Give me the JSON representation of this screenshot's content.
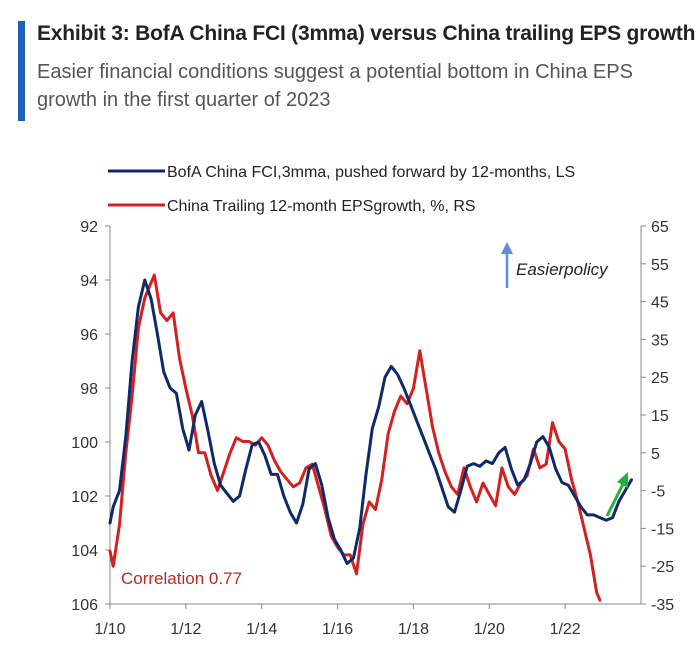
{
  "chart_data": {
    "type": "line",
    "title": "Exhibit 3: BofA China FCI (3mma) versus China trailing EPS growth",
    "subtitle": "Easier financial conditions suggest a potential bottom in China EPS growth in the first quarter of 2023",
    "x_ticks": [
      "1/10",
      "1/12",
      "1/14",
      "1/16",
      "1/18",
      "1/20",
      "1/22"
    ],
    "y_left": {
      "ticks": [
        "92",
        "94",
        "96",
        "98",
        "100",
        "102",
        "104",
        "106"
      ],
      "range": [
        92,
        106
      ],
      "inverted": true
    },
    "y_right": {
      "ticks": [
        "65",
        "55",
        "45",
        "35",
        "25",
        "15",
        "5",
        "-5",
        "-15",
        "-25",
        "-35"
      ],
      "range": [
        -35,
        65
      ]
    },
    "annotation": "Easierpolicy",
    "correlation_label": "Correlation 0.77",
    "grid": false,
    "legend_position": "top",
    "series": [
      {
        "name": "BofA China FCI,3mma, pushed forward by 12-months, LS",
        "axis": "left",
        "color": "#0f2a6b",
        "points": [
          [
            "2010-01",
            103.0
          ],
          [
            "2010-02",
            102.4
          ],
          [
            "2010-04",
            101.8
          ],
          [
            "2010-06",
            99.8
          ],
          [
            "2010-08",
            97.0
          ],
          [
            "2010-10",
            95.0
          ],
          [
            "2010-12",
            94.0
          ],
          [
            "2011-02",
            94.7
          ],
          [
            "2011-04",
            96.0
          ],
          [
            "2011-06",
            97.4
          ],
          [
            "2011-08",
            98.0
          ],
          [
            "2011-10",
            98.2
          ],
          [
            "2011-12",
            99.5
          ],
          [
            "2012-02",
            100.3
          ],
          [
            "2012-04",
            99.0
          ],
          [
            "2012-06",
            98.5
          ],
          [
            "2012-08",
            99.6
          ],
          [
            "2012-10",
            100.8
          ],
          [
            "2012-12",
            101.6
          ],
          [
            "2013-02",
            101.9
          ],
          [
            "2013-04",
            102.2
          ],
          [
            "2013-06",
            102.0
          ],
          [
            "2013-08",
            101.0
          ],
          [
            "2013-10",
            100.1
          ],
          [
            "2013-12",
            100.0
          ],
          [
            "2014-02",
            100.5
          ],
          [
            "2014-04",
            101.2
          ],
          [
            "2014-06",
            101.2
          ],
          [
            "2014-08",
            102.0
          ],
          [
            "2014-10",
            102.6
          ],
          [
            "2014-12",
            103.0
          ],
          [
            "2015-02",
            102.3
          ],
          [
            "2015-04",
            101.0
          ],
          [
            "2015-06",
            100.8
          ],
          [
            "2015-08",
            101.6
          ],
          [
            "2015-10",
            102.8
          ],
          [
            "2015-12",
            103.6
          ],
          [
            "2016-02",
            104.0
          ],
          [
            "2016-04",
            104.5
          ],
          [
            "2016-06",
            104.3
          ],
          [
            "2016-08",
            103.2
          ],
          [
            "2016-10",
            101.2
          ],
          [
            "2016-12",
            99.5
          ],
          [
            "2017-02",
            98.7
          ],
          [
            "2017-04",
            97.6
          ],
          [
            "2017-06",
            97.2
          ],
          [
            "2017-08",
            97.5
          ],
          [
            "2017-10",
            98.0
          ],
          [
            "2017-12",
            98.6
          ],
          [
            "2018-02",
            99.2
          ],
          [
            "2018-04",
            99.8
          ],
          [
            "2018-06",
            100.4
          ],
          [
            "2018-08",
            101.0
          ],
          [
            "2018-10",
            101.7
          ],
          [
            "2018-12",
            102.4
          ],
          [
            "2019-02",
            102.6
          ],
          [
            "2019-04",
            101.8
          ],
          [
            "2019-06",
            100.9
          ],
          [
            "2019-08",
            100.8
          ],
          [
            "2019-10",
            100.9
          ],
          [
            "2019-12",
            100.7
          ],
          [
            "2020-02",
            100.8
          ],
          [
            "2020-04",
            100.4
          ],
          [
            "2020-06",
            100.2
          ],
          [
            "2020-08",
            101.0
          ],
          [
            "2020-10",
            101.6
          ],
          [
            "2020-12",
            101.4
          ],
          [
            "2021-02",
            100.8
          ],
          [
            "2021-04",
            100.0
          ],
          [
            "2021-06",
            99.8
          ],
          [
            "2021-08",
            100.2
          ],
          [
            "2021-10",
            101.0
          ],
          [
            "2021-12",
            101.5
          ],
          [
            "2022-02",
            101.6
          ],
          [
            "2022-04",
            102.0
          ],
          [
            "2022-06",
            102.4
          ],
          [
            "2022-08",
            102.7
          ],
          [
            "2022-10",
            102.7
          ],
          [
            "2022-12",
            102.8
          ],
          [
            "2023-02",
            102.9
          ],
          [
            "2023-04",
            102.8
          ],
          [
            "2023-06",
            102.2
          ],
          [
            "2023-08",
            101.8
          ],
          [
            "2023-10",
            101.4
          ]
        ]
      },
      {
        "name": "China Trailing 12-month  EPSgrowth, %, RS",
        "axis": "right",
        "color": "#d42020",
        "points": [
          [
            "2010-01",
            -21
          ],
          [
            "2010-02",
            -25
          ],
          [
            "2010-04",
            -14
          ],
          [
            "2010-06",
            5
          ],
          [
            "2010-08",
            20
          ],
          [
            "2010-10",
            38
          ],
          [
            "2010-12",
            46
          ],
          [
            "2011-01",
            48
          ],
          [
            "2011-03",
            52
          ],
          [
            "2011-05",
            42
          ],
          [
            "2011-07",
            40
          ],
          [
            "2011-09",
            42
          ],
          [
            "2011-11",
            30
          ],
          [
            "2012-01",
            22
          ],
          [
            "2012-03",
            15
          ],
          [
            "2012-05",
            5
          ],
          [
            "2012-07",
            5
          ],
          [
            "2012-09",
            -1
          ],
          [
            "2012-11",
            -5
          ],
          [
            "2013-01",
            0
          ],
          [
            "2013-03",
            5
          ],
          [
            "2013-05",
            9
          ],
          [
            "2013-07",
            8
          ],
          [
            "2013-09",
            8
          ],
          [
            "2013-11",
            7
          ],
          [
            "2014-01",
            9
          ],
          [
            "2014-03",
            7
          ],
          [
            "2014-05",
            3
          ],
          [
            "2014-07",
            0
          ],
          [
            "2014-09",
            -2
          ],
          [
            "2014-11",
            -4
          ],
          [
            "2015-01",
            -3
          ],
          [
            "2015-03",
            1
          ],
          [
            "2015-05",
            2
          ],
          [
            "2015-07",
            -4
          ],
          [
            "2015-09",
            -10
          ],
          [
            "2015-11",
            -17
          ],
          [
            "2016-01",
            -20
          ],
          [
            "2016-03",
            -22
          ],
          [
            "2016-05",
            -22
          ],
          [
            "2016-07",
            -27
          ],
          [
            "2016-09",
            -14
          ],
          [
            "2016-11",
            -8
          ],
          [
            "2017-01",
            -10
          ],
          [
            "2017-03",
            -2
          ],
          [
            "2017-05",
            10
          ],
          [
            "2017-07",
            16
          ],
          [
            "2017-09",
            20
          ],
          [
            "2017-11",
            18
          ],
          [
            "2018-01",
            22
          ],
          [
            "2018-03",
            32
          ],
          [
            "2018-05",
            22
          ],
          [
            "2018-07",
            12
          ],
          [
            "2018-09",
            5
          ],
          [
            "2018-11",
            0
          ],
          [
            "2019-01",
            -4
          ],
          [
            "2019-03",
            -6
          ],
          [
            "2019-05",
            1
          ],
          [
            "2019-07",
            -4
          ],
          [
            "2019-09",
            -8
          ],
          [
            "2019-11",
            -3
          ],
          [
            "2020-01",
            -6
          ],
          [
            "2020-03",
            -9
          ],
          [
            "2020-05",
            1
          ],
          [
            "2020-07",
            -4
          ],
          [
            "2020-09",
            -6
          ],
          [
            "2020-11",
            -3
          ],
          [
            "2021-01",
            -1
          ],
          [
            "2021-03",
            6
          ],
          [
            "2021-05",
            1
          ],
          [
            "2021-07",
            2
          ],
          [
            "2021-09",
            13
          ],
          [
            "2021-11",
            8
          ],
          [
            "2022-01",
            6
          ],
          [
            "2022-03",
            -2
          ],
          [
            "2022-05",
            -8
          ],
          [
            "2022-07",
            -15
          ],
          [
            "2022-09",
            -22
          ],
          [
            "2022-11",
            -32
          ],
          [
            "2022-12",
            -34
          ]
        ]
      }
    ]
  },
  "arrow_colors": {
    "blue": "#5b8fd6",
    "green": "#22b43a"
  }
}
